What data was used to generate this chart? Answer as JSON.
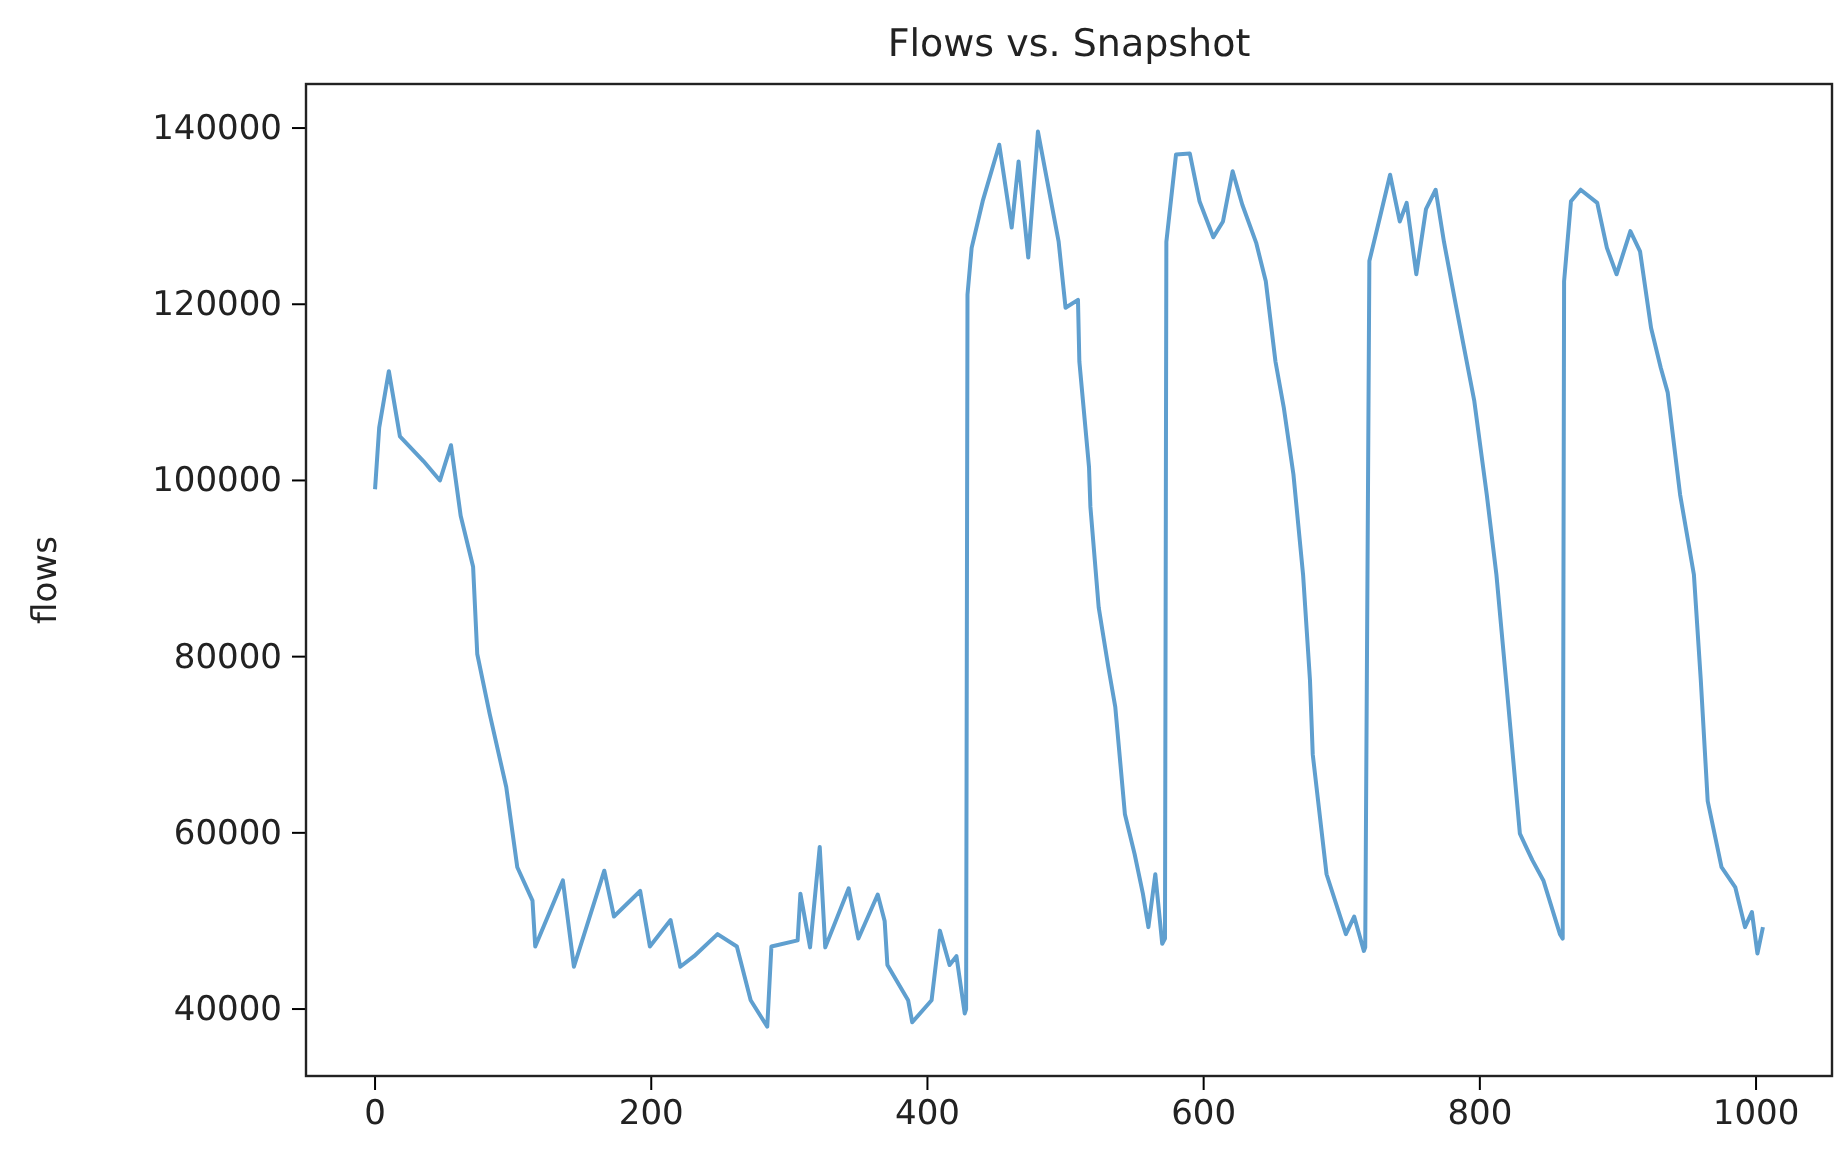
{
  "chart_data": {
    "type": "line",
    "title": "Flows vs. Snapshot",
    "ylabel": "flows",
    "xlim": [
      -50,
      1055
    ],
    "ylim": [
      32400,
      145000
    ],
    "xticks": [
      0,
      200,
      400,
      600,
      800,
      1000
    ],
    "yticks": [
      40000,
      60000,
      80000,
      100000,
      120000,
      140000
    ],
    "marker": "none",
    "line_style": "solid",
    "series": [
      {
        "color": "#5f9fcf",
        "x": [
          0,
          3,
          10,
          18,
          35,
          47,
          55,
          62,
          71,
          74,
          83,
          95,
          103,
          114,
          116,
          136,
          144,
          166,
          173,
          192,
          199,
          214,
          221,
          231,
          248,
          262,
          272,
          284,
          287,
          306,
          308,
          315,
          322,
          326,
          343,
          350,
          364,
          369,
          371,
          386,
          389,
          403,
          409,
          416,
          421,
          427,
          428,
          429,
          432,
          440,
          452,
          461,
          466,
          473,
          480,
          495,
          500,
          509,
          510,
          517,
          518,
          524,
          531,
          536,
          543,
          550,
          556,
          560,
          565,
          570,
          572,
          573,
          580,
          590,
          597,
          607,
          614,
          621,
          628,
          638,
          645,
          652,
          658,
          665,
          672,
          677,
          679,
          689,
          703,
          709,
          716,
          717,
          720,
          728,
          735,
          742,
          747,
          754,
          761,
          768,
          774,
          783,
          796,
          805,
          812,
          819,
          829,
          838,
          846,
          858,
          860,
          861,
          866,
          873,
          885,
          892,
          899,
          909,
          916,
          924,
          931,
          936,
          945,
          955,
          960,
          965,
          975,
          985,
          992,
          997,
          1001,
          1005
        ],
        "values": [
          99000,
          106000,
          112400,
          105000,
          102200,
          100000,
          104000,
          96000,
          90200,
          80300,
          73500,
          65200,
          56100,
          52300,
          47100,
          54600,
          44800,
          55700,
          50500,
          53400,
          47100,
          50100,
          44800,
          46000,
          48500,
          47100,
          41000,
          38000,
          47100,
          47800,
          53100,
          47000,
          58400,
          47000,
          53700,
          48000,
          53000,
          50000,
          45000,
          41000,
          38500,
          41000,
          48900,
          45000,
          46000,
          39500,
          40000,
          121100,
          126400,
          131700,
          138100,
          128700,
          136200,
          125300,
          139600,
          127100,
          119600,
          120500,
          113500,
          101500,
          97000,
          85600,
          78800,
          74300,
          62100,
          57600,
          53100,
          49300,
          55300,
          47400,
          48000,
          127100,
          137000,
          137100,
          131700,
          127600,
          129400,
          135100,
          131300,
          127000,
          122600,
          113500,
          108300,
          100700,
          89300,
          77300,
          68900,
          55300,
          48500,
          50500,
          46600,
          47000,
          124900,
          130100,
          134700,
          129400,
          131500,
          123400,
          130800,
          133000,
          127100,
          119600,
          109000,
          98400,
          89300,
          77300,
          59900,
          56900,
          54600,
          48500,
          48000,
          122600,
          131700,
          133000,
          131500,
          126400,
          123400,
          128300,
          126000,
          117300,
          112800,
          110000,
          98400,
          89300,
          77300,
          63600,
          56100,
          53800,
          49300,
          51000,
          46300,
          49300
        ]
      }
    ]
  }
}
